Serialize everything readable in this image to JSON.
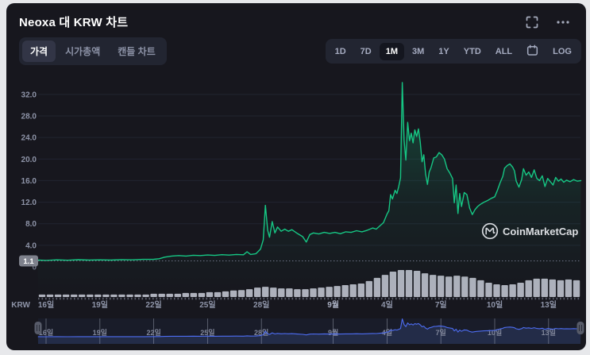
{
  "header": {
    "title": "Neoxa 대 KRW 차트",
    "more_icon_glyph": "•••"
  },
  "controls": {
    "chart_tabs": [
      "가격",
      "시가총액",
      "캔들 차트"
    ],
    "selected_tab": "가격",
    "periods": [
      "1D",
      "7D",
      "1M",
      "3M",
      "1Y",
      "YTD",
      "ALL"
    ],
    "selected_period": "1M",
    "log_label": "LOG"
  },
  "watermark": {
    "text": "CoinMarketCap"
  },
  "icons": {
    "fullscreen": "corner-brackets",
    "more": "ellipsis",
    "calendar": "calendar-glyph",
    "navigator_handle": "double-bar-grip"
  },
  "colors": {
    "card_bg": "#17171e",
    "accent_green": "#16c784",
    "accent_blue": "#4d6df2",
    "muted_text": "#8e94a8",
    "volume_bar": "#c9cdd8"
  },
  "chart_data": {
    "type": "line",
    "title": "Neoxa 대 KRW 차트",
    "selected_range": "1M",
    "currency_label": "KRW",
    "grid": true,
    "yaxis": {
      "lim": [
        0,
        36
      ],
      "tick_values": [
        32,
        28,
        24,
        20,
        16,
        12,
        8,
        4
      ],
      "tick_labels": [
        "32.0",
        "28.0",
        "24.0",
        "20.0",
        "16.0",
        "12.0",
        "8.0",
        "4.0"
      ],
      "zero_label": "0"
    },
    "xaxis": {
      "ticks": [
        {
          "day": 0,
          "label": "16일",
          "month": false
        },
        {
          "day": 3,
          "label": "19일",
          "month": false
        },
        {
          "day": 6,
          "label": "22일",
          "month": false
        },
        {
          "day": 9,
          "label": "25일",
          "month": false
        },
        {
          "day": 12,
          "label": "28일",
          "month": false
        },
        {
          "day": 16,
          "label": "9월",
          "month": true
        },
        {
          "day": 19,
          "label": "4일",
          "month": false
        },
        {
          "day": 22,
          "label": "7일",
          "month": false
        },
        {
          "day": 25,
          "label": "10일",
          "month": false
        },
        {
          "day": 28,
          "label": "13일",
          "month": false
        }
      ]
    },
    "reference_line": {
      "value": 1.1,
      "label": "1.1"
    },
    "price_series": {
      "name": "가격 (KRW)",
      "color": "#16c784",
      "points": [
        [
          -0.45,
          1.25
        ],
        [
          0,
          1.2
        ],
        [
          0.6,
          1.3
        ],
        [
          1.2,
          1.22
        ],
        [
          1.8,
          1.32
        ],
        [
          2.4,
          1.25
        ],
        [
          3,
          1.3
        ],
        [
          3.6,
          1.26
        ],
        [
          4.2,
          1.34
        ],
        [
          4.8,
          1.3
        ],
        [
          5.4,
          1.38
        ],
        [
          6,
          1.4
        ],
        [
          6.3,
          1.5
        ],
        [
          6.6,
          1.8
        ],
        [
          7,
          2.0
        ],
        [
          7.4,
          2.1
        ],
        [
          7.8,
          2.0
        ],
        [
          8.2,
          2.15
        ],
        [
          8.6,
          2.1
        ],
        [
          9,
          2.2
        ],
        [
          9.4,
          2.12
        ],
        [
          9.8,
          2.25
        ],
        [
          10.2,
          2.18
        ],
        [
          10.6,
          2.3
        ],
        [
          11,
          2.24
        ],
        [
          11.2,
          2.8
        ],
        [
          11.4,
          2.3
        ],
        [
          11.7,
          2.45
        ],
        [
          11.95,
          3.3
        ],
        [
          12.1,
          5.0
        ],
        [
          12.22,
          11.4
        ],
        [
          12.35,
          6.8
        ],
        [
          12.45,
          5.5
        ],
        [
          12.6,
          8.4
        ],
        [
          12.75,
          6.3
        ],
        [
          12.9,
          7.4
        ],
        [
          13.1,
          6.6
        ],
        [
          13.3,
          7.0
        ],
        [
          13.5,
          6.6
        ],
        [
          13.7,
          6.9
        ],
        [
          14,
          6.2
        ],
        [
          14.3,
          5.6
        ],
        [
          14.5,
          4.6
        ],
        [
          14.7,
          6.0
        ],
        [
          14.9,
          6.3
        ],
        [
          15.2,
          6.1
        ],
        [
          15.5,
          6.4
        ],
        [
          15.8,
          6.2
        ],
        [
          16.1,
          6.4
        ],
        [
          16.4,
          6.15
        ],
        [
          16.7,
          6.5
        ],
        [
          17,
          6.4
        ],
        [
          17.3,
          6.7
        ],
        [
          17.6,
          6.5
        ],
        [
          17.9,
          6.8
        ],
        [
          18.2,
          7.2
        ],
        [
          18.4,
          7.0
        ],
        [
          18.6,
          7.6
        ],
        [
          18.8,
          8.2
        ],
        [
          19,
          9.8
        ],
        [
          19.1,
          10.4
        ],
        [
          19.2,
          13.4
        ],
        [
          19.3,
          12.6
        ],
        [
          19.45,
          14.2
        ],
        [
          19.55,
          13.6
        ],
        [
          19.65,
          14.9
        ],
        [
          19.75,
          16.5
        ],
        [
          19.85,
          34.2
        ],
        [
          19.95,
          23.5
        ],
        [
          20.05,
          19.8
        ],
        [
          20.15,
          26.8
        ],
        [
          20.25,
          23.4
        ],
        [
          20.35,
          24.8
        ],
        [
          20.45,
          23.0
        ],
        [
          20.55,
          25.4
        ],
        [
          20.65,
          24.2
        ],
        [
          20.75,
          25.6
        ],
        [
          20.85,
          23.2
        ],
        [
          20.95,
          19.5
        ],
        [
          21.05,
          20.8
        ],
        [
          21.15,
          17.2
        ],
        [
          21.25,
          15.3
        ],
        [
          21.35,
          17.6
        ],
        [
          21.45,
          18.4
        ],
        [
          21.6,
          20.2
        ],
        [
          21.75,
          20.4
        ],
        [
          21.9,
          21.2
        ],
        [
          22.05,
          20.8
        ],
        [
          22.2,
          20.0
        ],
        [
          22.35,
          18.2
        ],
        [
          22.5,
          17.4
        ],
        [
          22.65,
          16.4
        ],
        [
          22.75,
          11.9
        ],
        [
          22.85,
          15.2
        ],
        [
          22.95,
          9.9
        ],
        [
          23.05,
          13.6
        ],
        [
          23.15,
          11.2
        ],
        [
          23.3,
          13.8
        ],
        [
          23.45,
          13.4
        ],
        [
          23.6,
          10.9
        ],
        [
          23.75,
          9.7
        ],
        [
          23.9,
          10.6
        ],
        [
          24.05,
          11.2
        ],
        [
          24.2,
          11.6
        ],
        [
          24.4,
          12.0
        ],
        [
          24.6,
          12.3
        ],
        [
          24.8,
          12.7
        ],
        [
          25,
          13.0
        ],
        [
          25.15,
          14.2
        ],
        [
          25.3,
          15.6
        ],
        [
          25.45,
          16.8
        ],
        [
          25.55,
          18.3
        ],
        [
          25.7,
          18.8
        ],
        [
          25.85,
          19.1
        ],
        [
          26,
          18.5
        ],
        [
          26.1,
          17.8
        ],
        [
          26.2,
          15.9
        ],
        [
          26.35,
          14.8
        ],
        [
          26.5,
          16.2
        ],
        [
          26.6,
          18.2
        ],
        [
          26.75,
          17.0
        ],
        [
          26.9,
          17.6
        ],
        [
          27.05,
          16.6
        ],
        [
          27.2,
          18.0
        ],
        [
          27.35,
          16.4
        ],
        [
          27.5,
          16.0
        ],
        [
          27.65,
          16.9
        ],
        [
          27.8,
          14.9
        ],
        [
          27.95,
          16.4
        ],
        [
          28.1,
          15.8
        ],
        [
          28.25,
          15.2
        ],
        [
          28.4,
          16.6
        ],
        [
          28.55,
          15.9
        ],
        [
          28.7,
          16.3
        ],
        [
          28.85,
          15.7
        ],
        [
          29,
          16.1
        ],
        [
          29.2,
          15.8
        ],
        [
          29.4,
          16.2
        ],
        [
          29.6,
          15.9
        ],
        [
          29.8,
          16.0
        ]
      ]
    },
    "volume_bars": {
      "color": "#c9cdd8",
      "values_relative": [
        0.09,
        0.09,
        0.09,
        0.09,
        0.09,
        0.09,
        0.09,
        0.09,
        0.09,
        0.09,
        0.09,
        0.09,
        0.09,
        0.09,
        0.12,
        0.12,
        0.12,
        0.12,
        0.15,
        0.15,
        0.15,
        0.18,
        0.18,
        0.21,
        0.24,
        0.26,
        0.29,
        0.35,
        0.38,
        0.35,
        0.32,
        0.32,
        0.29,
        0.29,
        0.32,
        0.35,
        0.38,
        0.41,
        0.44,
        0.47,
        0.5,
        0.59,
        0.71,
        0.82,
        0.94,
        1.0,
        1.0,
        0.97,
        0.88,
        0.82,
        0.79,
        0.76,
        0.79,
        0.76,
        0.71,
        0.62,
        0.53,
        0.47,
        0.44,
        0.47,
        0.53,
        0.62,
        0.68,
        0.68,
        0.65,
        0.62,
        0.65,
        0.62
      ]
    },
    "navigator": {
      "color": "#4d6df2",
      "uses_series": "price_series",
      "tick_labels": [
        "16일",
        "19일",
        "22일",
        "25일",
        "28일",
        "9월",
        "4일",
        "7일",
        "10일",
        "13일"
      ]
    }
  }
}
